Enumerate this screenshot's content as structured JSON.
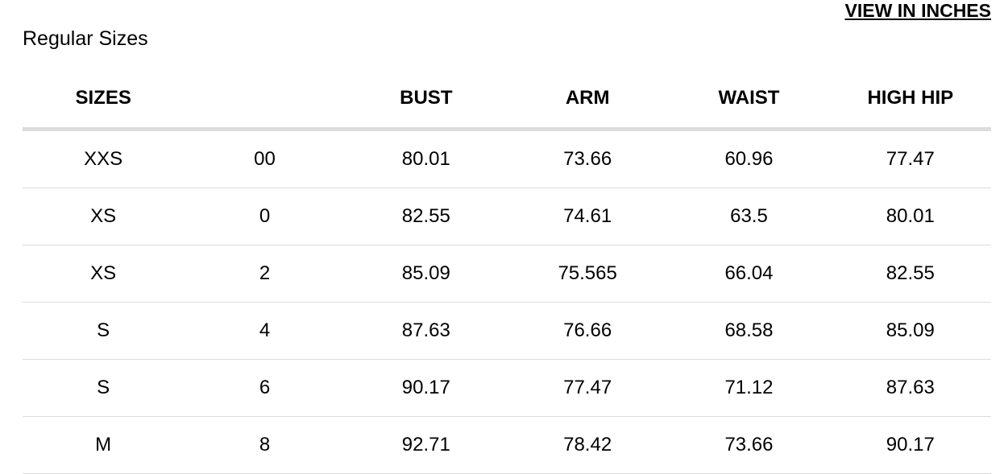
{
  "toggle_label": "VIEW IN INCHES",
  "section_title": "Regular Sizes",
  "table": {
    "headers": [
      "SIZES",
      "",
      "BUST",
      "ARM",
      "WAIST",
      "HIGH HIP"
    ],
    "rows": [
      [
        "XXS",
        "00",
        "80.01",
        "73.66",
        "60.96",
        "77.47"
      ],
      [
        "XS",
        "0",
        "82.55",
        "74.61",
        "63.5",
        "80.01"
      ],
      [
        "XS",
        "2",
        "85.09",
        "75.565",
        "66.04",
        "82.55"
      ],
      [
        "S",
        "4",
        "87.63",
        "76.66",
        "68.58",
        "85.09"
      ],
      [
        "S",
        "6",
        "90.17",
        "77.47",
        "71.12",
        "87.63"
      ],
      [
        "M",
        "8",
        "92.71",
        "78.42",
        "73.66",
        "90.17"
      ]
    ]
  }
}
